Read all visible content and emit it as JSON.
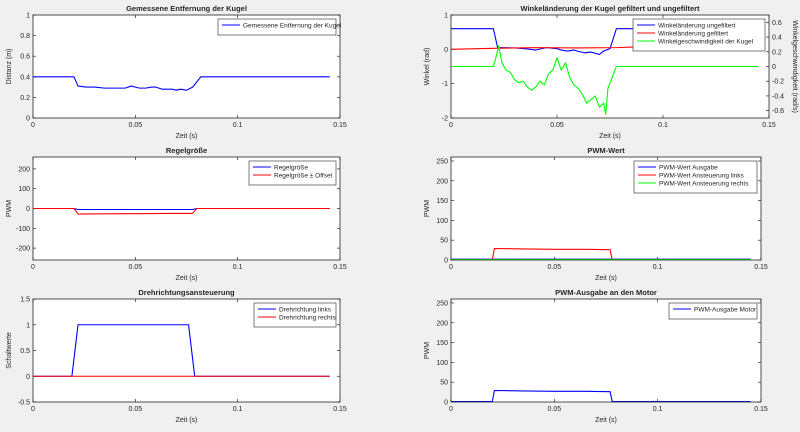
{
  "chart_data": [
    {
      "type": "line",
      "title": "Gemessene Entfernung der Kugel",
      "xlabel": "Zeit (s)",
      "ylabel": "Distanz (m)",
      "xlim": [
        0,
        0.15
      ],
      "ylim": [
        0,
        1
      ],
      "xticks": [
        0,
        0.05,
        0.1,
        0.15
      ],
      "yticks": [
        0,
        0.2,
        0.4,
        0.6,
        0.8,
        1
      ],
      "xtick_labels": [
        "0",
        "0.05",
        "0.1",
        "0.15"
      ],
      "ytick_labels": [
        "0",
        "0.2",
        "0.4",
        "0.6",
        "0.8",
        "1"
      ],
      "legend_position": "top-right",
      "series": [
        {
          "name": "Gemessene Entfernung der Kugel",
          "color": "#0000ff",
          "x": [
            0,
            0.02,
            0.022,
            0.026,
            0.03,
            0.035,
            0.04,
            0.045,
            0.048,
            0.05,
            0.052,
            0.055,
            0.058,
            0.06,
            0.063,
            0.066,
            0.068,
            0.07,
            0.072,
            0.075,
            0.078,
            0.082,
            0.145
          ],
          "y": [
            0.4,
            0.4,
            0.31,
            0.3,
            0.3,
            0.29,
            0.29,
            0.29,
            0.31,
            0.3,
            0.29,
            0.29,
            0.3,
            0.3,
            0.28,
            0.28,
            0.28,
            0.27,
            0.28,
            0.27,
            0.3,
            0.4,
            0.4
          ]
        }
      ]
    },
    {
      "type": "line",
      "title": "Winkeländerung der Kugel gefiltert und ungefiltert",
      "xlabel": "Zeit (s)",
      "ylabel": "Winkel (rad)",
      "ylabel_right": "Winkelgeschwindigkeit (rad/s)",
      "xlim": [
        0,
        0.15
      ],
      "ylim": [
        -2,
        1
      ],
      "ylim_right": [
        -0.7,
        0.7
      ],
      "xticks": [
        0,
        0.05,
        0.1,
        0.15
      ],
      "yticks": [
        -2,
        -1,
        0,
        1
      ],
      "yticks_right": [
        -0.6,
        -0.4,
        -0.2,
        0,
        0.2,
        0.4,
        0.6
      ],
      "xtick_labels": [
        "0",
        "0.05",
        "0.1",
        "0.15"
      ],
      "ytick_labels": [
        "-2",
        "-1",
        "0",
        "1"
      ],
      "ytick_labels_right": [
        "-0.6",
        "-0.4",
        "-0.2",
        "0",
        "0.2",
        "0.4",
        "0.6"
      ],
      "legend_position": "top-right",
      "series": [
        {
          "name": "Winkeländerung ungefiltert",
          "color": "#0000ff",
          "axis": "left",
          "x": [
            0,
            0.02,
            0.022,
            0.025,
            0.03,
            0.035,
            0.04,
            0.045,
            0.05,
            0.052,
            0.055,
            0.058,
            0.06,
            0.063,
            0.066,
            0.07,
            0.072,
            0.075,
            0.078,
            0.08,
            0.145
          ],
          "y": [
            0.6,
            0.6,
            0.05,
            0.05,
            0.04,
            0.02,
            -0.02,
            0.05,
            0.02,
            -0.02,
            -0.05,
            -0.02,
            -0.06,
            -0.1,
            -0.08,
            -0.15,
            -0.05,
            0.02,
            0.6,
            0.6,
            0.6
          ]
        },
        {
          "name": "Winkeländerung gefiltert",
          "color": "#ff0000",
          "axis": "left",
          "x": [
            0,
            0.02,
            0.04,
            0.06,
            0.078,
            0.1,
            0.12,
            0.145
          ],
          "y": [
            0.0,
            0.03,
            0.05,
            0.04,
            0.05,
            0.1,
            0.15,
            0.2
          ]
        },
        {
          "name": "Winkelgeschwindigkeit der Kugel",
          "color": "#00ff00",
          "axis": "right",
          "x": [
            0,
            0.02,
            0.021,
            0.0225,
            0.024,
            0.026,
            0.028,
            0.03,
            0.032,
            0.034,
            0.036,
            0.038,
            0.04,
            0.042,
            0.044,
            0.046,
            0.048,
            0.05,
            0.052,
            0.054,
            0.056,
            0.058,
            0.06,
            0.062,
            0.064,
            0.066,
            0.068,
            0.07,
            0.072,
            0.073,
            0.074,
            0.076,
            0.078,
            0.145
          ],
          "y": [
            0,
            0,
            0.1,
            0.28,
            0.05,
            -0.05,
            -0.08,
            -0.18,
            -0.22,
            -0.2,
            -0.28,
            -0.32,
            -0.28,
            -0.2,
            -0.25,
            -0.1,
            -0.05,
            0.12,
            -0.05,
            0.05,
            -0.15,
            -0.25,
            -0.3,
            -0.38,
            -0.5,
            -0.45,
            -0.4,
            -0.55,
            -0.5,
            -0.65,
            -0.3,
            -0.15,
            0,
            0
          ]
        }
      ]
    },
    {
      "type": "line",
      "title": "Regelgröße",
      "xlabel": "Zeit (s)",
      "ylabel": "PWM",
      "xlim": [
        0,
        0.15
      ],
      "ylim": [
        -260,
        260
      ],
      "xticks": [
        0,
        0.05,
        0.1,
        0.15
      ],
      "yticks": [
        -200,
        -100,
        0,
        100,
        200
      ],
      "xtick_labels": [
        "0",
        "0.05",
        "0.1",
        "0.15"
      ],
      "ytick_labels": [
        "-200",
        "-100",
        "0",
        "100",
        "200"
      ],
      "legend_position": "top-right",
      "series": [
        {
          "name": "Regelgröße",
          "color": "#0000ff",
          "x": [
            0,
            0.02,
            0.022,
            0.05,
            0.078,
            0.08,
            0.145
          ],
          "y": [
            0,
            0,
            -5,
            -5,
            -5,
            0,
            0
          ]
        },
        {
          "name": "Regelgröße ± Offset",
          "color": "#ff0000",
          "x": [
            0,
            0.02,
            0.022,
            0.035,
            0.05,
            0.065,
            0.078,
            0.08,
            0.145
          ],
          "y": [
            0,
            0,
            -28,
            -27,
            -26,
            -25,
            -25,
            0,
            0
          ]
        }
      ]
    },
    {
      "type": "line",
      "title": "PWM-Wert",
      "xlabel": "Zeit (s)",
      "ylabel": "PWM",
      "xlim": [
        0,
        0.15
      ],
      "ylim": [
        0,
        260
      ],
      "xticks": [
        0,
        0.05,
        0.1,
        0.15
      ],
      "yticks": [
        0,
        50,
        100,
        150,
        200,
        250
      ],
      "xtick_labels": [
        "0",
        "0.05",
        "0.1",
        "0.15"
      ],
      "ytick_labels": [
        "0",
        "50",
        "100",
        "150",
        "200",
        "250"
      ],
      "legend_position": "top-right",
      "series": [
        {
          "name": "PWM-Wert Ausgabe",
          "color": "#0000ff",
          "x": [
            0,
            0.145
          ],
          "y": [
            2,
            2
          ]
        },
        {
          "name": "PWM-Wert Ansteuerung links",
          "color": "#ff0000",
          "x": [
            0,
            0.02,
            0.021,
            0.035,
            0.05,
            0.065,
            0.077,
            0.078,
            0.145
          ],
          "y": [
            0,
            0,
            29,
            28,
            27,
            27,
            26,
            0,
            0
          ]
        },
        {
          "name": "PWM-Wert Ansteuerung rechts",
          "color": "#00ff00",
          "x": [
            0,
            0.145
          ],
          "y": [
            1,
            1
          ]
        }
      ]
    },
    {
      "type": "line",
      "title": "Drehrichtungsansteuerung",
      "xlabel": "Zeit (s)",
      "ylabel": "Schaltwerte",
      "xlim": [
        0,
        0.15
      ],
      "ylim": [
        -0.5,
        1.5
      ],
      "xticks": [
        0,
        0.05,
        0.1,
        0.15
      ],
      "yticks": [
        -0.5,
        0,
        0.5,
        1,
        1.5
      ],
      "xtick_labels": [
        "0",
        "0.05",
        "0.1",
        "0.15"
      ],
      "ytick_labels": [
        "-0.5",
        "0",
        "0.5",
        "1",
        "1.5"
      ],
      "legend_position": "top-right",
      "series": [
        {
          "name": "Drehrichtung links",
          "color": "#0000ff",
          "x": [
            0,
            0.019,
            0.022,
            0.076,
            0.079,
            0.145
          ],
          "y": [
            0,
            0,
            1,
            1,
            0,
            0
          ]
        },
        {
          "name": "Drehrichtung rechts",
          "color": "#ff0000",
          "x": [
            0,
            0.145
          ],
          "y": [
            0,
            0
          ]
        }
      ]
    },
    {
      "type": "line",
      "title": "PWM-Ausgabe an den Motor",
      "xlabel": "Zeit (s)",
      "ylabel": "PWM",
      "xlim": [
        0,
        0.15
      ],
      "ylim": [
        0,
        260
      ],
      "xticks": [
        0,
        0.05,
        0.1,
        0.15
      ],
      "yticks": [
        0,
        50,
        100,
        150,
        200,
        250
      ],
      "xtick_labels": [
        "0",
        "0.05",
        "0.1",
        "0.15"
      ],
      "ytick_labels": [
        "0",
        "50",
        "100",
        "150",
        "200",
        "250"
      ],
      "legend_position": "top-right",
      "series": [
        {
          "name": "PWM-Ausgabe Motor",
          "color": "#0000ff",
          "x": [
            0,
            0.02,
            0.021,
            0.035,
            0.05,
            0.065,
            0.077,
            0.078,
            0.145
          ],
          "y": [
            1,
            1,
            29,
            28,
            27,
            27,
            26,
            1,
            1
          ]
        }
      ]
    }
  ]
}
